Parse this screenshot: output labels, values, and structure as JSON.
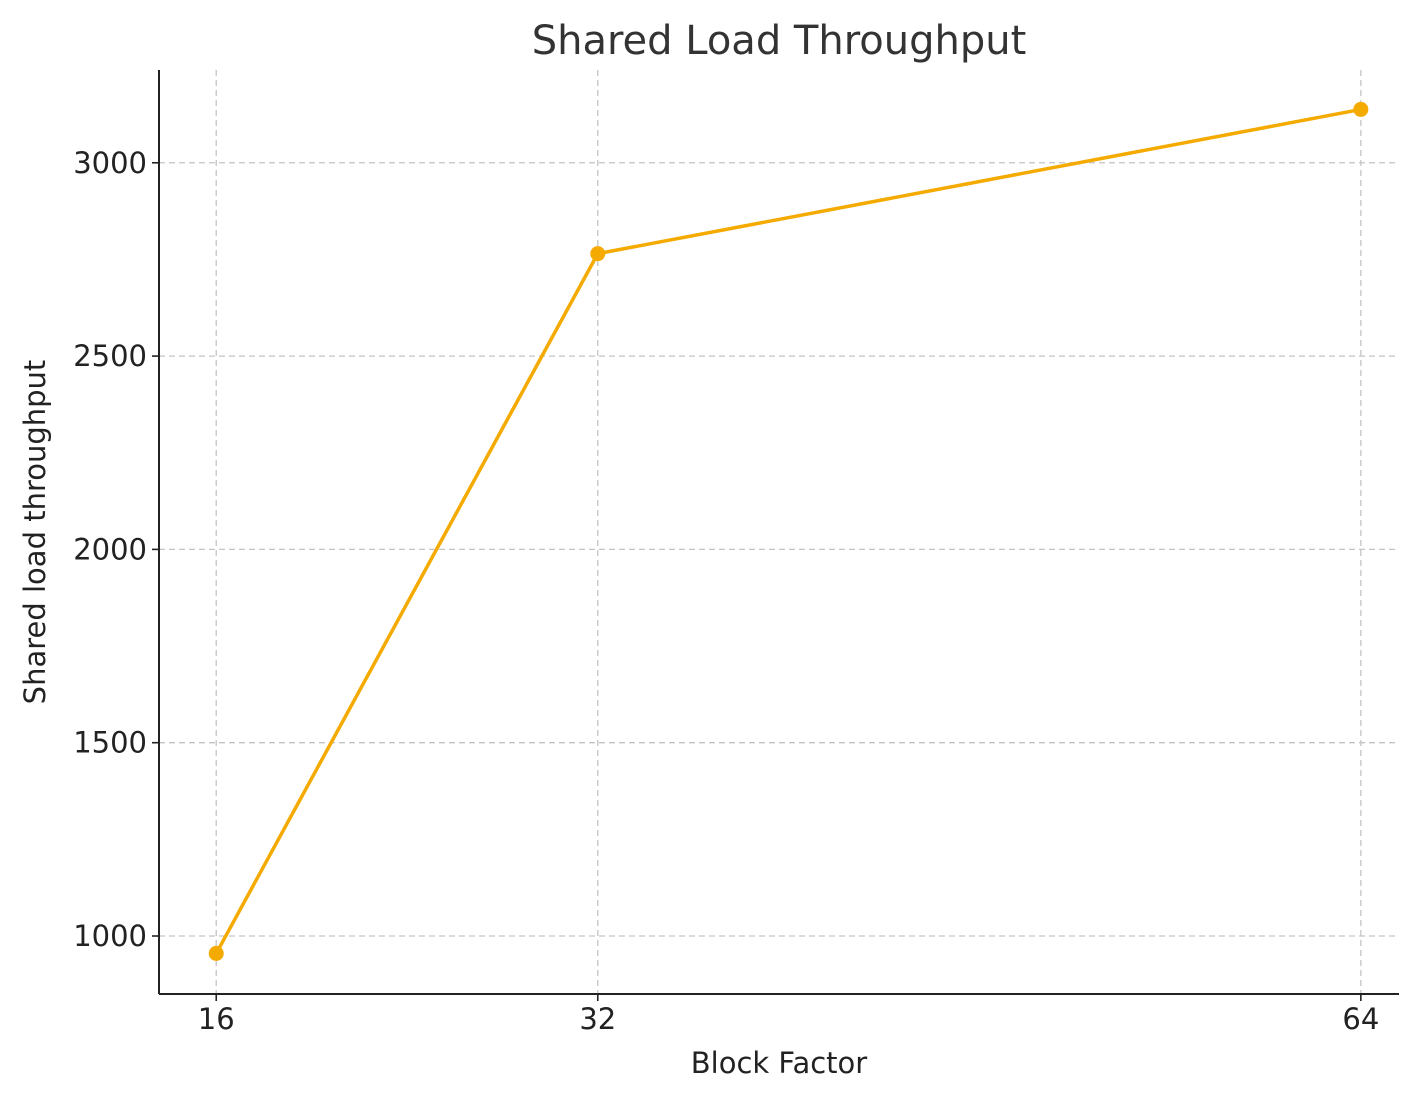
{
  "chart_data": {
    "type": "line",
    "title": "Shared Load Throughput",
    "xlabel": "Block Factor",
    "ylabel": "Shared load throughput",
    "x": [
      16,
      32,
      64
    ],
    "xticks": [
      "16",
      "32",
      "64"
    ],
    "yticks": [
      1000,
      1500,
      2000,
      2500,
      3000
    ],
    "ytick_labels": [
      "1000",
      "1500",
      "2000",
      "2500",
      "3000"
    ],
    "xlim": [
      13.6,
      65.6
    ],
    "ylim": [
      850,
      3240
    ],
    "grid": true,
    "series": [
      {
        "values": [
          955,
          2765,
          3138
        ],
        "color": "#f5aa00",
        "marker": "circle"
      }
    ]
  }
}
